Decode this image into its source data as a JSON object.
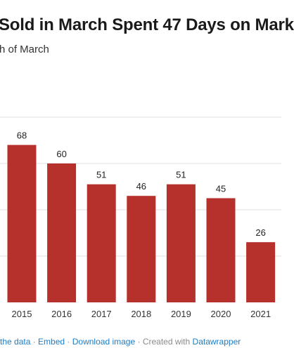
{
  "title": "Sold in March Spent 47 Days on Mark",
  "subtitle": "h of March",
  "footer": {
    "link_data": "the data",
    "separator": " · ",
    "link_embed": "Embed",
    "link_download": "Download image",
    "created_with": "Created with",
    "link_datawrapper": "Datawrapper"
  },
  "colors": {
    "bar": "#b7312c",
    "grid": "#e2e2e2",
    "link": "#1d7cc4"
  },
  "chart_data": {
    "type": "bar",
    "title": "Sold in March Spent 47 Days on Mark",
    "subtitle": "h of March",
    "categories": [
      "2015",
      "2016",
      "2017",
      "2018",
      "2019",
      "2020",
      "2021"
    ],
    "values": [
      68,
      60,
      51,
      46,
      51,
      45,
      26
    ],
    "ylim": [
      0,
      80
    ],
    "grid": true,
    "value_labels": true
  }
}
